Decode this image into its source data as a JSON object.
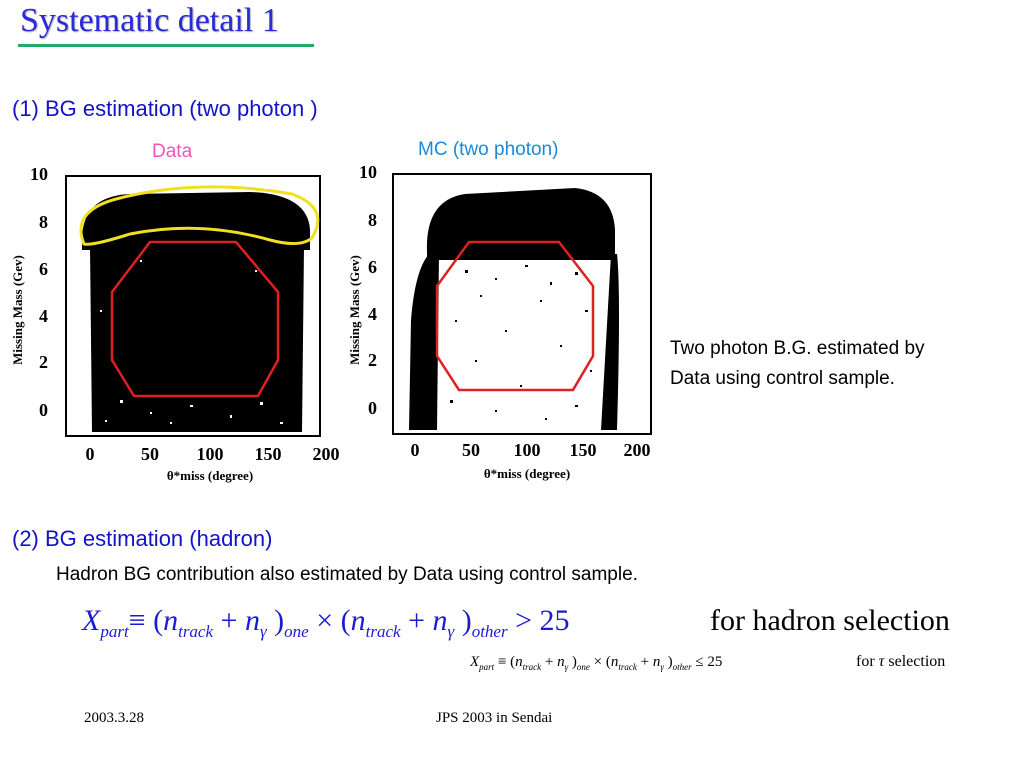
{
  "title": "Systematic detail 1",
  "section1": {
    "heading": "(1) BG estimation (two photon )",
    "label_data": "Data",
    "label_mc": "MC (two photon)",
    "note_line1": "Two photon B.G. estimated by",
    "note_line2": "Data using control sample."
  },
  "plots": [
    {
      "ylabel": "Missing Mass (Gev)",
      "xlabel": "θ*miss (degree)",
      "yticks": [
        "0",
        "2",
        "4",
        "6",
        "8",
        "10"
      ],
      "xticks": [
        "0",
        "50",
        "100",
        "150",
        "200"
      ]
    },
    {
      "ylabel": "Missing Mass (Gev)",
      "xlabel": "θ*miss (degree)",
      "yticks": [
        "0",
        "2",
        "4",
        "6",
        "8",
        "10"
      ],
      "xticks": [
        "0",
        "50",
        "100",
        "150",
        "200"
      ]
    }
  ],
  "section2": {
    "heading": "(2) BG estimation (hadron)",
    "subtext": "Hadron BG contribution also estimated by Data using control sample."
  },
  "equations": {
    "big": {
      "X": "X",
      "part": "part",
      "equiv": "≡ (",
      "n1": "n",
      "track1": "track",
      "plus1": " + ",
      "n2": "n",
      "gamma1": "γ",
      "close1": " )",
      "one": "one",
      "times": " × (",
      "n3": "n",
      "track2": "track",
      "plus2": " + ",
      "n4": "n",
      "gamma2": "γ",
      "close2": " )",
      "other": "other",
      "rel": " > 25",
      "right": "for hadron selection"
    },
    "small": {
      "X": "X",
      "part": "part",
      "equiv": " ≡ (",
      "n1": "n",
      "track1": "track",
      "plus1": " + ",
      "n2": "n",
      "gamma1": "γ",
      "close1": " )",
      "one": "one",
      "times": " × (",
      "n3": "n",
      "track2": "track",
      "plus2": " + ",
      "n4": "n",
      "gamma2": "γ",
      "close2": " )",
      "other": "other",
      "rel": " ≤ 25",
      "right_for": "for",
      "right_tau": "τ",
      "right_sel": "selection"
    }
  },
  "footer": {
    "date": "2003.3.28",
    "venue": "JPS 2003 in Sendai"
  },
  "colors": {
    "title": "#2a2ad8",
    "heading": "#1212c8",
    "data_label": "#ee55bb",
    "mc_label": "#1a8ad8",
    "region_red": "#e02020",
    "region_yellow": "#f0e020",
    "underline": "#22aa66"
  }
}
